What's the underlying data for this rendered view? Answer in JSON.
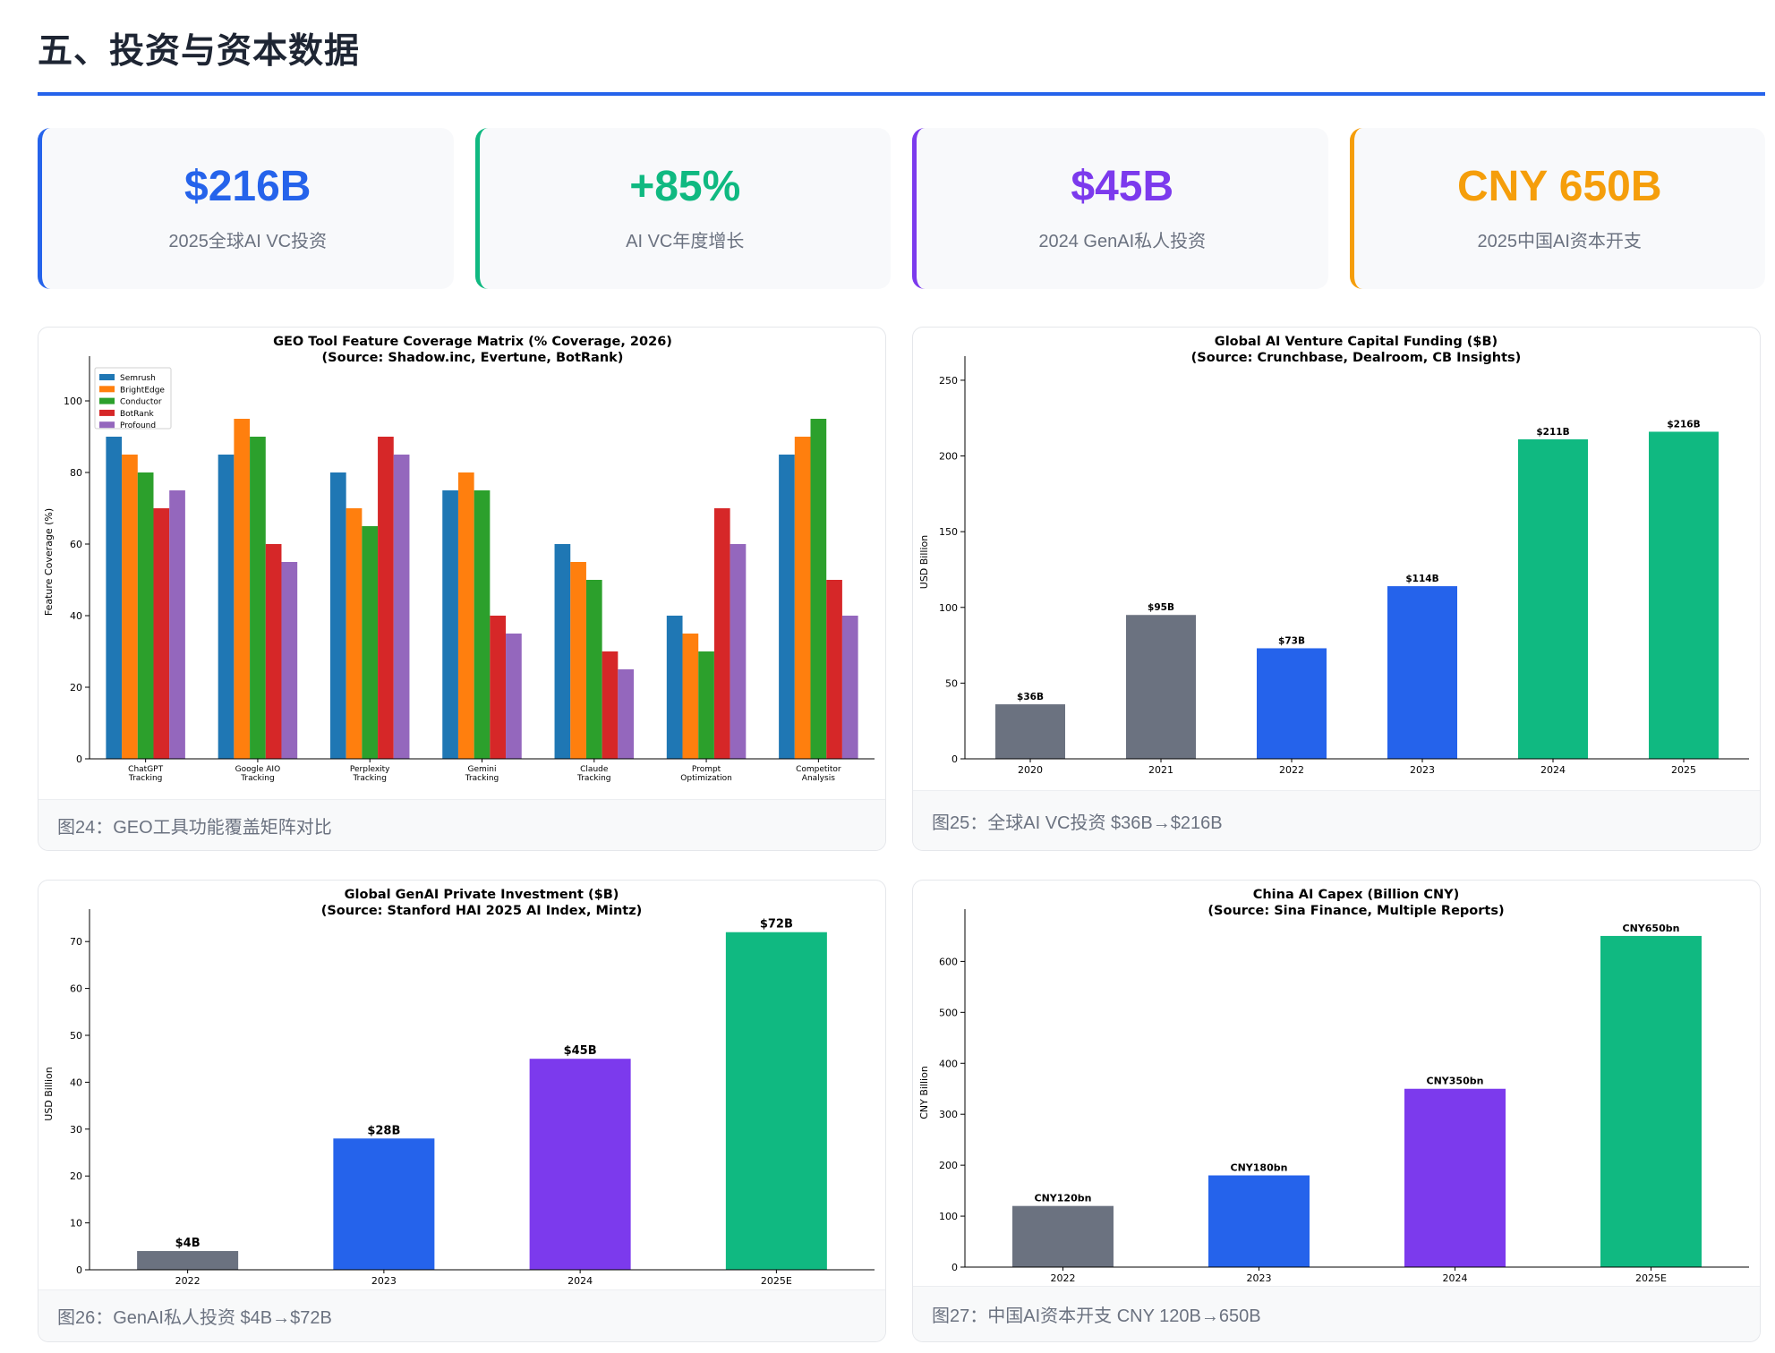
{
  "section_title": "五、投资与资本数据",
  "stats": [
    {
      "value": "$216B",
      "label": "2025全球AI VC投资",
      "color": "#2563eb"
    },
    {
      "value": "+85%",
      "label": "AI VC年度增长",
      "color": "#10b981"
    },
    {
      "value": "$45B",
      "label": "2024 GenAI私人投资",
      "color": "#7c3aed"
    },
    {
      "value": "CNY 650B",
      "label": "2025中国AI资本开支",
      "color": "#f59e0b"
    }
  ],
  "captions": [
    "图24：GEO工具功能覆盖矩阵对比",
    "图25：全球AI VC投资 $36B→$216B",
    "图26：GenAI私人投资 $4B→$72B",
    "图27：中国AI资本开支 CNY 120B→650B"
  ],
  "chart_data": [
    {
      "type": "bar",
      "title": "GEO Tool Feature Coverage Matrix (% Coverage, 2026)",
      "subtitle": "(Source: Shadow.inc, Evertune, BotRank)",
      "xlabel": "",
      "ylabel": "Feature Coverage (%)",
      "ylim": [
        0,
        110
      ],
      "yticks": [
        0,
        20,
        40,
        60,
        80,
        100
      ],
      "legend_position": "top-left",
      "categories": [
        [
          "ChatGPT",
          "Tracking"
        ],
        [
          "Google AIO",
          "Tracking"
        ],
        [
          "Perplexity",
          "Tracking"
        ],
        [
          "Gemini",
          "Tracking"
        ],
        [
          "Claude",
          "Tracking"
        ],
        [
          "Prompt",
          "Optimization"
        ],
        [
          "Competitor",
          "Analysis"
        ]
      ],
      "series": [
        {
          "name": "Semrush",
          "color": "#1f77b4",
          "values": [
            90,
            85,
            80,
            75,
            60,
            40,
            85
          ]
        },
        {
          "name": "BrightEdge",
          "color": "#ff7f0e",
          "values": [
            85,
            95,
            70,
            80,
            55,
            35,
            90
          ]
        },
        {
          "name": "Conductor",
          "color": "#2ca02c",
          "values": [
            80,
            90,
            65,
            75,
            50,
            30,
            95
          ]
        },
        {
          "name": "BotRank",
          "color": "#d62728",
          "values": [
            70,
            60,
            90,
            40,
            30,
            70,
            50
          ]
        },
        {
          "name": "Profound",
          "color": "#9467bd",
          "values": [
            75,
            55,
            85,
            35,
            25,
            60,
            40
          ]
        }
      ]
    },
    {
      "type": "bar",
      "title": "Global AI Venture Capital Funding ($B)",
      "subtitle": "(Source: Crunchbase, Dealroom, CB Insights)",
      "xlabel": "",
      "ylabel": "USD Billion",
      "ylim": [
        0,
        260
      ],
      "yticks": [
        0,
        50,
        100,
        150,
        200,
        250
      ],
      "categories": [
        "2020",
        "2021",
        "2022",
        "2023",
        "2024",
        "2025"
      ],
      "values": [
        36,
        95,
        73,
        114,
        211,
        216
      ],
      "data_labels": [
        "$36B",
        "$95B",
        "$73B",
        "$114B",
        "$211B",
        "$216B"
      ],
      "colors": [
        "#6b7280",
        "#6b7280",
        "#2563eb",
        "#2563eb",
        "#10b981",
        "#10b981"
      ]
    },
    {
      "type": "bar",
      "title": "Global GenAI Private Investment ($B)",
      "subtitle": "(Source: Stanford HAI 2025 AI Index, Mintz)",
      "xlabel": "",
      "ylabel": "USD Billion",
      "ylim": [
        0,
        75
      ],
      "yticks": [
        0,
        10,
        20,
        30,
        40,
        50,
        60,
        70
      ],
      "categories": [
        "2022",
        "2023",
        "2024",
        "2025E"
      ],
      "values": [
        4,
        28,
        45,
        72
      ],
      "data_labels": [
        "$4B",
        "$28B",
        "$45B",
        "$72B"
      ],
      "colors": [
        "#6b7280",
        "#2563eb",
        "#7c3aed",
        "#10b981"
      ]
    },
    {
      "type": "bar",
      "title": "China AI Capex (Billion CNY)",
      "subtitle": "(Source: Sina Finance, Multiple Reports)",
      "xlabel": "",
      "ylabel": "CNY Billion",
      "ylim": [
        0,
        685
      ],
      "yticks": [
        0,
        100,
        200,
        300,
        400,
        500,
        600
      ],
      "categories": [
        "2022",
        "2023",
        "2024",
        "2025E"
      ],
      "values": [
        120,
        180,
        350,
        650
      ],
      "data_labels": [
        "CNY120bn",
        "CNY180bn",
        "CNY350bn",
        "CNY650bn"
      ],
      "colors": [
        "#6b7280",
        "#2563eb",
        "#7c3aed",
        "#10b981"
      ]
    }
  ]
}
